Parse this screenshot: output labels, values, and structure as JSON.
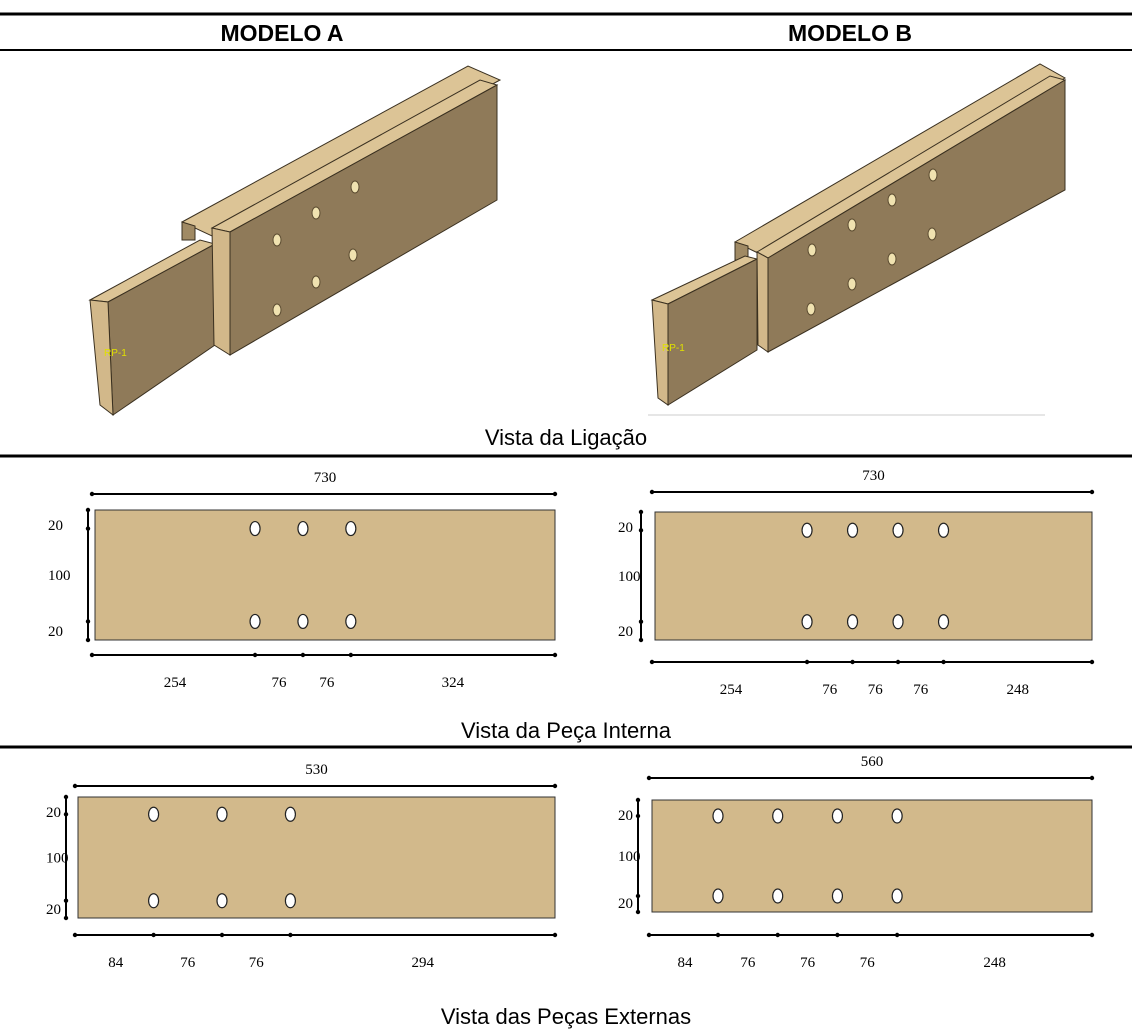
{
  "headers": [
    "MODELO A",
    "MODELO B"
  ],
  "sections": [
    {
      "caption": "Vista da Ligação",
      "models": [
        {
          "label": "RP-1"
        },
        {
          "label": "RP-1"
        }
      ]
    },
    {
      "caption": "Vista da Peça Interna",
      "models": [
        {
          "length": 730,
          "heights": [
            20,
            100,
            20
          ],
          "spacings": [
            254,
            76,
            76,
            324
          ]
        },
        {
          "length": 730,
          "heights": [
            20,
            100,
            20
          ],
          "spacings": [
            254,
            76,
            76,
            76,
            248
          ]
        }
      ]
    },
    {
      "caption": "Vista das Peças Externas",
      "models": [
        {
          "length": 530,
          "heights": [
            20,
            100,
            20
          ],
          "spacings": [
            84,
            76,
            76,
            294
          ]
        },
        {
          "length": 560,
          "heights": [
            20,
            100,
            20
          ],
          "spacings": [
            84,
            76,
            76,
            76,
            248
          ]
        }
      ]
    }
  ]
}
